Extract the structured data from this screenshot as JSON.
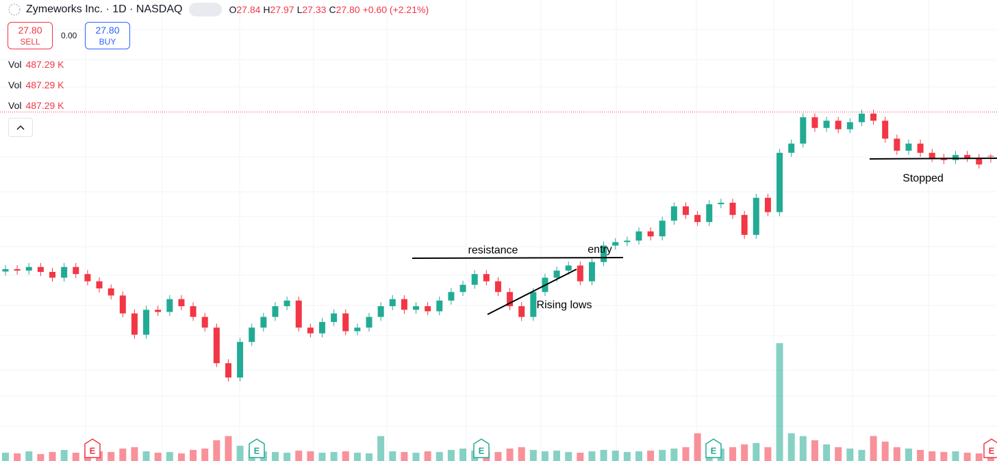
{
  "header": {
    "symbol": "Zymeworks Inc. · 1D · NASDAQ",
    "ohlc": [
      {
        "label": "O",
        "value": "27.84"
      },
      {
        "label": "H",
        "value": "27.97"
      },
      {
        "label": "L",
        "value": "27.33"
      },
      {
        "label": "C",
        "value": "27.80"
      }
    ],
    "change": "+0.60 (+2.21%)",
    "sell": {
      "price": "27.80",
      "label": "SELL"
    },
    "spread": "0.00",
    "buy": {
      "price": "27.80",
      "label": "BUY"
    },
    "volume_readouts": [
      {
        "label": "Vol",
        "value": "487.29 K"
      },
      {
        "label": "Vol",
        "value": "487.29 K"
      },
      {
        "label": "Vol",
        "value": "487.29 K"
      }
    ]
  },
  "chart_data": {
    "type": "candlestick",
    "up_color": "#22ab94",
    "down_color": "#f23645",
    "open": [
      19.2,
      19.38,
      19.27,
      19.54,
      19.17,
      18.74,
      19.54,
      19.01,
      18.47,
      17.94,
      17.41,
      16.07,
      14.48,
      16.34,
      16.18,
      17.14,
      16.61,
      15.81,
      15.01,
      12.35,
      11.28,
      13.94,
      15.01,
      15.81,
      16.61,
      17.03,
      15.01,
      14.58,
      15.43,
      16.07,
      14.74,
      15.01,
      15.81,
      16.61,
      17.14,
      16.34,
      16.61,
      16.23,
      17.03,
      17.67,
      18.21,
      19.01,
      18.47,
      17.67,
      16.61,
      15.81,
      17.67,
      18.74,
      19.27,
      19.65,
      18.47,
      19.91,
      21.14,
      21.4,
      21.51,
      22.2,
      21.83,
      23.0,
      24.07,
      23.43,
      22.9,
      24.23,
      24.34,
      23.43,
      21.94,
      24.71,
      23.64,
      28.07,
      28.76,
      30.73,
      29.93,
      30.47,
      29.83,
      30.36,
      31.0,
      30.47,
      29.13,
      28.23,
      28.76,
      28.07,
      27.69,
      27.53,
      27.91,
      27.69,
      27.84
    ],
    "high": [
      19.68,
      19.68,
      19.84,
      19.84,
      19.47,
      19.84,
      19.84,
      19.31,
      18.77,
      18.24,
      17.71,
      16.37,
      16.64,
      16.64,
      17.44,
      17.44,
      16.91,
      16.11,
      15.31,
      12.65,
      14.24,
      15.31,
      16.11,
      16.91,
      17.33,
      17.33,
      15.31,
      15.73,
      16.37,
      16.37,
      15.31,
      16.11,
      16.91,
      17.44,
      17.44,
      16.91,
      16.91,
      17.33,
      17.97,
      18.51,
      19.31,
      19.31,
      18.77,
      17.97,
      16.91,
      17.97,
      19.04,
      19.57,
      19.95,
      19.95,
      20.21,
      21.44,
      21.7,
      21.81,
      22.5,
      22.5,
      23.3,
      24.37,
      24.37,
      23.73,
      24.53,
      24.64,
      24.64,
      23.73,
      25.01,
      25.01,
      28.37,
      29.06,
      31.03,
      31.03,
      30.77,
      30.77,
      30.66,
      31.3,
      31.3,
      30.77,
      29.43,
      29.06,
      29.06,
      28.37,
      27.99,
      28.21,
      28.21,
      27.99,
      27.97
    ],
    "low": [
      18.9,
      18.97,
      18.97,
      18.87,
      18.44,
      18.44,
      18.71,
      18.17,
      17.64,
      17.11,
      15.77,
      14.18,
      14.18,
      15.88,
      15.88,
      16.31,
      15.51,
      14.71,
      12.05,
      10.98,
      10.98,
      13.64,
      14.71,
      15.51,
      16.31,
      14.71,
      14.28,
      14.28,
      15.13,
      14.44,
      14.44,
      14.71,
      15.51,
      16.31,
      16.04,
      16.04,
      15.93,
      15.93,
      16.73,
      17.37,
      17.91,
      18.17,
      17.37,
      16.31,
      15.51,
      15.51,
      17.37,
      18.44,
      18.97,
      18.17,
      18.17,
      19.61,
      20.84,
      21.1,
      21.21,
      21.53,
      21.53,
      22.7,
      23.13,
      22.6,
      22.6,
      23.93,
      23.13,
      21.64,
      21.64,
      23.34,
      23.34,
      27.77,
      28.46,
      29.63,
      29.63,
      29.53,
      29.53,
      30.06,
      30.17,
      28.83,
      27.93,
      27.93,
      27.77,
      27.39,
      27.23,
      27.23,
      27.39,
      26.9,
      27.33
    ],
    "close": [
      19.38,
      19.27,
      19.54,
      19.17,
      18.74,
      19.54,
      19.01,
      18.47,
      17.94,
      17.41,
      16.07,
      14.48,
      16.34,
      16.18,
      17.14,
      16.61,
      15.81,
      15.01,
      12.35,
      11.28,
      13.94,
      15.01,
      15.81,
      16.61,
      17.03,
      15.01,
      14.58,
      15.43,
      16.07,
      14.74,
      15.01,
      15.81,
      16.61,
      17.14,
      16.34,
      16.61,
      16.23,
      17.03,
      17.67,
      18.21,
      19.01,
      18.47,
      17.67,
      16.61,
      15.81,
      17.67,
      18.74,
      19.27,
      19.65,
      18.47,
      19.91,
      21.14,
      21.4,
      21.51,
      22.2,
      21.83,
      23.0,
      24.07,
      23.43,
      22.9,
      24.23,
      24.34,
      23.43,
      21.94,
      24.71,
      23.64,
      28.07,
      28.76,
      30.73,
      29.93,
      30.47,
      29.83,
      30.36,
      31.0,
      30.47,
      29.13,
      28.23,
      28.76,
      28.07,
      27.69,
      27.53,
      27.91,
      27.69,
      27.2,
      27.8
    ],
    "volume": [
      600,
      550,
      700,
      500,
      650,
      800,
      600,
      550,
      700,
      650,
      900,
      1000,
      700,
      600,
      650,
      550,
      800,
      900,
      1500,
      1800,
      1100,
      800,
      700,
      650,
      600,
      750,
      700,
      600,
      650,
      700,
      600,
      550,
      1800,
      700,
      650,
      600,
      700,
      650,
      800,
      900,
      750,
      700,
      650,
      900,
      1000,
      800,
      700,
      750,
      650,
      600,
      700,
      800,
      750,
      650,
      700,
      750,
      800,
      900,
      1000,
      2000,
      1100,
      900,
      1000,
      1200,
      1300,
      1000,
      8500,
      2000,
      1800,
      1500,
      1200,
      1000,
      900,
      800,
      1800,
      1400,
      1000,
      900,
      800,
      700,
      650,
      700,
      600,
      550,
      487.29
    ],
    "events": [
      "E",
      "E",
      "E",
      "E",
      "E"
    ],
    "annotations": [
      "resistance",
      "entry",
      "Rising lows",
      "Stopped"
    ]
  }
}
